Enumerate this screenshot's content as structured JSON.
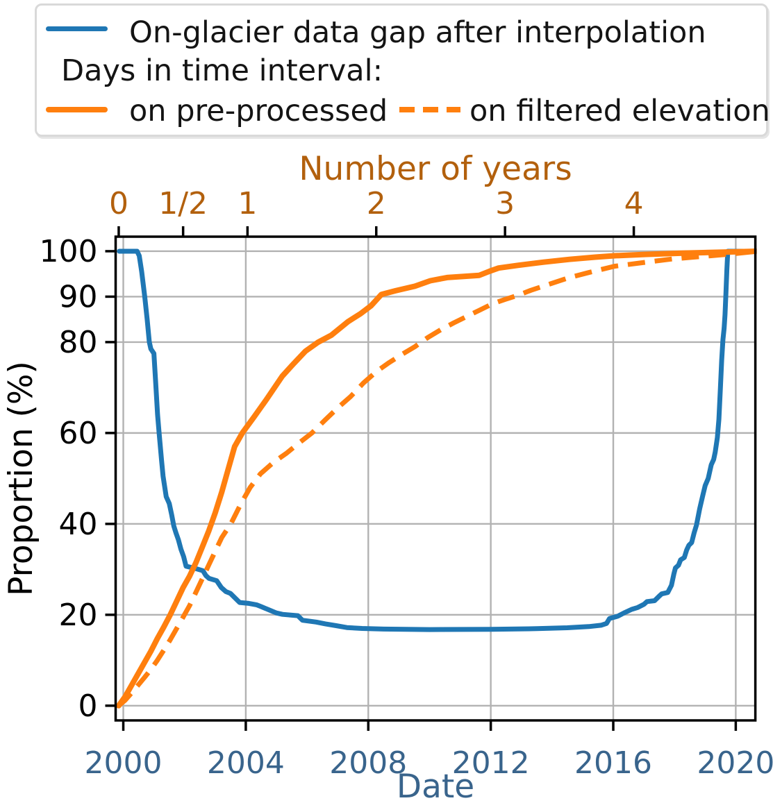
{
  "colors": {
    "blue_line": "#1f77b4",
    "orange_line": "#ff7f0e",
    "date_axis": "#39648c",
    "years_axis": "#b2600d",
    "grid": "#b2b2b2",
    "spine": "#000000",
    "text": "#141414"
  },
  "legend": {
    "row1": {
      "label": "On-glacier data gap after interpolation",
      "swatch": "blue-solid-line"
    },
    "row2": {
      "label": "Days in time interval:"
    },
    "row3a": {
      "label": "on pre-processed",
      "swatch": "orange-solid-line"
    },
    "row3b": {
      "label": "on filtered elevation",
      "swatch": "orange-dashed-line"
    }
  },
  "chart_data": {
    "type": "line",
    "title": "",
    "axes": {
      "bottom": {
        "label": "Date",
        "color": "#39648c",
        "min": 1999.75,
        "max": 2020.64,
        "grid": true,
        "ticks": [
          {
            "v": 2000,
            "label": "2000"
          },
          {
            "v": 2004,
            "label": "2004"
          },
          {
            "v": 2008,
            "label": "2008"
          },
          {
            "v": 2012,
            "label": "2012"
          },
          {
            "v": 2016,
            "label": "2016"
          },
          {
            "v": 2020,
            "label": "2020"
          }
        ]
      },
      "top": {
        "label": "Number of years",
        "color": "#b2600d",
        "min": -0.024,
        "max": 4.944,
        "grid": false,
        "ticks": [
          {
            "v": 0,
            "label": "0"
          },
          {
            "v": 0.5,
            "label": "1/2"
          },
          {
            "v": 1,
            "label": "1"
          },
          {
            "v": 2,
            "label": "2"
          },
          {
            "v": 3,
            "label": "3"
          },
          {
            "v": 4,
            "label": "4"
          }
        ]
      },
      "left": {
        "label": "Proportion (%)",
        "color": "#000000",
        "min": -3.24,
        "max": 103.2,
        "grid": true,
        "ticks": [
          {
            "v": 0,
            "label": "0"
          },
          {
            "v": 20,
            "label": "20"
          },
          {
            "v": 40,
            "label": "40"
          },
          {
            "v": 60,
            "label": "60"
          },
          {
            "v": 80,
            "label": "80"
          },
          {
            "v": 90,
            "label": "90"
          },
          {
            "v": 100,
            "label": "100"
          }
        ]
      }
    },
    "series": [
      {
        "name": "On-glacier data gap after interpolation",
        "xaxis": "bottom",
        "color": "#1f77b4",
        "style": "solid",
        "width": 7,
        "points": [
          [
            1999.87,
            100
          ],
          [
            2000.45,
            100
          ],
          [
            2000.52,
            99
          ],
          [
            2000.6,
            95.5
          ],
          [
            2000.7,
            90
          ],
          [
            2000.78,
            85
          ],
          [
            2000.85,
            80
          ],
          [
            2000.9,
            78.5
          ],
          [
            2001.0,
            77.5
          ],
          [
            2001.05,
            72
          ],
          [
            2001.12,
            64
          ],
          [
            2001.17,
            60
          ],
          [
            2001.25,
            54
          ],
          [
            2001.3,
            50.5
          ],
          [
            2001.4,
            46
          ],
          [
            2001.5,
            44.5
          ],
          [
            2001.58,
            42
          ],
          [
            2001.65,
            39.5
          ],
          [
            2001.72,
            38
          ],
          [
            2001.8,
            36.5
          ],
          [
            2001.88,
            34.5
          ],
          [
            2001.97,
            32.8
          ],
          [
            2002.05,
            30.7
          ],
          [
            2002.35,
            30.2
          ],
          [
            2002.6,
            29.7
          ],
          [
            2002.7,
            28.6
          ],
          [
            2002.8,
            28
          ],
          [
            2003.05,
            27.5
          ],
          [
            2003.2,
            26
          ],
          [
            2003.35,
            25.1
          ],
          [
            2003.5,
            24.7
          ],
          [
            2003.65,
            23.7
          ],
          [
            2003.8,
            22.7
          ],
          [
            2004.1,
            22.5
          ],
          [
            2004.35,
            22.2
          ],
          [
            2004.5,
            21.8
          ],
          [
            2004.75,
            21.1
          ],
          [
            2005.0,
            20.4
          ],
          [
            2005.2,
            20.1
          ],
          [
            2005.7,
            19.8
          ],
          [
            2005.85,
            18.8
          ],
          [
            2006.3,
            18.4
          ],
          [
            2006.6,
            18
          ],
          [
            2006.95,
            17.6
          ],
          [
            2007.3,
            17.2
          ],
          [
            2007.8,
            17
          ],
          [
            2008.5,
            16.85
          ],
          [
            2010,
            16.75
          ],
          [
            2012,
            16.8
          ],
          [
            2013.5,
            16.95
          ],
          [
            2014.5,
            17.15
          ],
          [
            2015.2,
            17.4
          ],
          [
            2015.6,
            17.7
          ],
          [
            2015.78,
            18.1
          ],
          [
            2015.88,
            19.2
          ],
          [
            2016.15,
            19.7
          ],
          [
            2016.35,
            20.4
          ],
          [
            2016.6,
            21.2
          ],
          [
            2016.8,
            21.6
          ],
          [
            2017.0,
            22.3
          ],
          [
            2017.1,
            22.9
          ],
          [
            2017.35,
            23.1
          ],
          [
            2017.5,
            24.1
          ],
          [
            2017.58,
            24.6
          ],
          [
            2017.78,
            24.9
          ],
          [
            2017.9,
            26.5
          ],
          [
            2017.98,
            29
          ],
          [
            2018.03,
            30.3
          ],
          [
            2018.13,
            30.9
          ],
          [
            2018.2,
            32.1
          ],
          [
            2018.32,
            32.6
          ],
          [
            2018.4,
            34.3
          ],
          [
            2018.47,
            35.3
          ],
          [
            2018.56,
            35.9
          ],
          [
            2018.64,
            38
          ],
          [
            2018.72,
            39.8
          ],
          [
            2018.82,
            43.3
          ],
          [
            2018.92,
            46.2
          ],
          [
            2019.0,
            48.4
          ],
          [
            2019.1,
            50
          ],
          [
            2019.15,
            51.5
          ],
          [
            2019.2,
            53
          ],
          [
            2019.28,
            54.2
          ],
          [
            2019.33,
            55.8
          ],
          [
            2019.4,
            59
          ],
          [
            2019.45,
            63
          ],
          [
            2019.5,
            70
          ],
          [
            2019.54,
            76
          ],
          [
            2019.58,
            80.5
          ],
          [
            2019.62,
            83
          ],
          [
            2019.65,
            86
          ],
          [
            2019.68,
            91
          ],
          [
            2019.71,
            96
          ],
          [
            2019.74,
            100
          ],
          [
            2020.64,
            100
          ]
        ]
      },
      {
        "name": "Days in time interval: on pre-processed",
        "xaxis": "top",
        "color": "#ff7f0e",
        "style": "solid",
        "width": 8,
        "points": [
          [
            0,
            0
          ],
          [
            0.05,
            2
          ],
          [
            0.1,
            4.5
          ],
          [
            0.15,
            7
          ],
          [
            0.2,
            9.5
          ],
          [
            0.25,
            12
          ],
          [
            0.3,
            14.8
          ],
          [
            0.35,
            17.3
          ],
          [
            0.4,
            20
          ],
          [
            0.45,
            23
          ],
          [
            0.5,
            26
          ],
          [
            0.55,
            28.5
          ],
          [
            0.6,
            31.5
          ],
          [
            0.65,
            35
          ],
          [
            0.7,
            38.5
          ],
          [
            0.75,
            42.5
          ],
          [
            0.8,
            47
          ],
          [
            0.85,
            52
          ],
          [
            0.9,
            57
          ],
          [
            0.96,
            60
          ],
          [
            1.05,
            63.5
          ],
          [
            1.15,
            67.5
          ],
          [
            1.27,
            72.5
          ],
          [
            1.35,
            75
          ],
          [
            1.45,
            78
          ],
          [
            1.55,
            80
          ],
          [
            1.65,
            81.5
          ],
          [
            1.78,
            84.5
          ],
          [
            1.88,
            86.3
          ],
          [
            1.96,
            88
          ],
          [
            2.04,
            90.5
          ],
          [
            2.15,
            91.3
          ],
          [
            2.3,
            92.3
          ],
          [
            2.42,
            93.5
          ],
          [
            2.55,
            94.2
          ],
          [
            2.7,
            94.5
          ],
          [
            2.8,
            94.7
          ],
          [
            2.88,
            95.6
          ],
          [
            2.95,
            96.3
          ],
          [
            3.1,
            96.9
          ],
          [
            3.3,
            97.6
          ],
          [
            3.5,
            98.2
          ],
          [
            3.7,
            98.7
          ],
          [
            3.85,
            99
          ],
          [
            4.1,
            99.3
          ],
          [
            4.4,
            99.6
          ],
          [
            4.7,
            99.8
          ],
          [
            4.96,
            100
          ]
        ]
      },
      {
        "name": "Days in time interval: on filtered elevation",
        "xaxis": "top",
        "color": "#ff7f0e",
        "style": "dashed",
        "width": 7,
        "points": [
          [
            0,
            0
          ],
          [
            0.05,
            1.2
          ],
          [
            0.1,
            2.8
          ],
          [
            0.15,
            4.5
          ],
          [
            0.2,
            6.2
          ],
          [
            0.25,
            8
          ],
          [
            0.3,
            10
          ],
          [
            0.35,
            12.2
          ],
          [
            0.4,
            14.5
          ],
          [
            0.45,
            17
          ],
          [
            0.5,
            19.5
          ],
          [
            0.55,
            22
          ],
          [
            0.6,
            25
          ],
          [
            0.65,
            28
          ],
          [
            0.7,
            31
          ],
          [
            0.75,
            34
          ],
          [
            0.8,
            37
          ],
          [
            0.87,
            40
          ],
          [
            0.95,
            44.5
          ],
          [
            1.02,
            48
          ],
          [
            1.1,
            51
          ],
          [
            1.2,
            53.5
          ],
          [
            1.3,
            55.5
          ],
          [
            1.4,
            57.8
          ],
          [
            1.5,
            60
          ],
          [
            1.6,
            62.8
          ],
          [
            1.7,
            65.5
          ],
          [
            1.8,
            68
          ],
          [
            1.9,
            71
          ],
          [
            2.0,
            73.5
          ],
          [
            2.1,
            75.5
          ],
          [
            2.2,
            77.3
          ],
          [
            2.3,
            79
          ],
          [
            2.4,
            81
          ],
          [
            2.5,
            82.7
          ],
          [
            2.6,
            84.2
          ],
          [
            2.7,
            85.6
          ],
          [
            2.8,
            87
          ],
          [
            2.9,
            88.4
          ],
          [
            3.0,
            89.4
          ],
          [
            3.1,
            90.3
          ],
          [
            3.2,
            91.4
          ],
          [
            3.35,
            92.8
          ],
          [
            3.5,
            94.2
          ],
          [
            3.65,
            95.3
          ],
          [
            3.85,
            96.7
          ],
          [
            4.1,
            97.6
          ],
          [
            4.3,
            98.3
          ],
          [
            4.6,
            99
          ],
          [
            4.8,
            99.5
          ],
          [
            4.96,
            100
          ]
        ]
      }
    ]
  }
}
